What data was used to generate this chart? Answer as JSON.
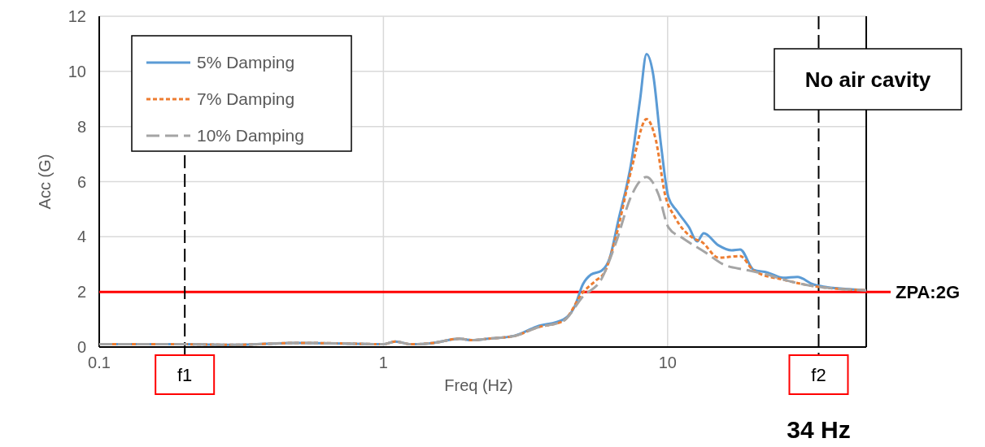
{
  "chart_data": {
    "type": "line",
    "xlabel": "Freq (Hz)",
    "ylabel": "Acc (G)",
    "log": "x",
    "xlim": [
      0.1,
      50
    ],
    "xticks": [
      0.1,
      1,
      10
    ],
    "ylim": [
      0,
      12
    ],
    "yticks": [
      0,
      2,
      4,
      6,
      8,
      10,
      12
    ],
    "grid": true,
    "legend": "top left",
    "series": [
      {
        "name": "5% Damping",
        "color": "#5b9bd5",
        "line_style": "solid",
        "x": [
          0.1,
          0.2,
          0.3,
          0.5,
          0.8,
          1.0,
          1.1,
          1.25,
          1.5,
          1.85,
          2.05,
          2.33,
          2.89,
          3.46,
          4.3,
          4.71,
          5.03,
          5.38,
          5.86,
          6.26,
          6.69,
          7.48,
          8.0,
          8.43,
          8.88,
          9.49,
          10.07,
          10.8,
          11.9,
          12.7,
          13.4,
          15.1,
          16.8,
          18.0,
          20.1,
          22.4,
          25.5,
          28.6,
          32.6,
          40.5,
          50
        ],
        "values": [
          0.1,
          0.1,
          0.08,
          0.15,
          0.12,
          0.1,
          0.2,
          0.1,
          0.15,
          0.3,
          0.25,
          0.3,
          0.41,
          0.74,
          1.0,
          1.47,
          2.27,
          2.63,
          2.77,
          3.24,
          4.54,
          6.8,
          8.97,
          10.63,
          9.94,
          7.29,
          5.43,
          4.93,
          4.34,
          3.83,
          4.13,
          3.69,
          3.51,
          3.54,
          2.8,
          2.71,
          2.51,
          2.54,
          2.27,
          2.12,
          2.06
        ]
      },
      {
        "name": "7% Damping",
        "color": "#ed7d31",
        "line_style": "dotted",
        "x": [
          0.1,
          0.2,
          0.3,
          0.5,
          0.8,
          1.0,
          1.1,
          1.25,
          1.5,
          1.85,
          2.05,
          2.33,
          2.89,
          3.46,
          4.3,
          5.03,
          5.6,
          6.0,
          6.56,
          7.48,
          8.43,
          9.1,
          9.8,
          10.6,
          12.3,
          13.2,
          15.1,
          18.0,
          20.1,
          26.1,
          32.6,
          50
        ],
        "values": [
          0.1,
          0.1,
          0.08,
          0.15,
          0.12,
          0.1,
          0.2,
          0.1,
          0.15,
          0.3,
          0.25,
          0.3,
          0.4,
          0.7,
          0.95,
          1.98,
          2.42,
          2.71,
          3.95,
          6.5,
          8.27,
          7.49,
          5.52,
          4.72,
          3.95,
          3.81,
          3.24,
          3.3,
          2.77,
          2.42,
          2.21,
          2.06
        ]
      },
      {
        "name": "10% Damping",
        "color": "#a5a5a5",
        "line_style": "dashed",
        "x": [
          0.1,
          0.2,
          0.3,
          0.5,
          0.8,
          1.0,
          1.1,
          1.25,
          1.5,
          1.85,
          2.05,
          2.33,
          2.89,
          3.46,
          4.3,
          5.03,
          5.86,
          6.56,
          7.48,
          8.43,
          9.3,
          10.07,
          11.3,
          13.5,
          15.7,
          18.8,
          22.4,
          26.1,
          32.6,
          50
        ],
        "values": [
          0.1,
          0.1,
          0.08,
          0.15,
          0.12,
          0.1,
          0.2,
          0.1,
          0.15,
          0.3,
          0.25,
          0.3,
          0.4,
          0.7,
          0.95,
          1.83,
          2.48,
          3.75,
          5.52,
          6.17,
          5.52,
          4.34,
          3.95,
          3.45,
          3.0,
          2.8,
          2.63,
          2.42,
          2.21,
          2.06
        ]
      }
    ],
    "ref_lines": [
      {
        "axis": "y",
        "value": 2,
        "label": "ZPA:2G",
        "color": "#ff0000",
        "line_style": "solid"
      },
      {
        "axis": "x",
        "value": 0.2,
        "label": "f1",
        "color": "#000000",
        "line_style": "dashed"
      },
      {
        "axis": "x",
        "value": 34,
        "label": "f2",
        "color": "#000000",
        "line_style": "dashed"
      }
    ],
    "annotations": [
      "No air cavity",
      "34 Hz"
    ]
  }
}
